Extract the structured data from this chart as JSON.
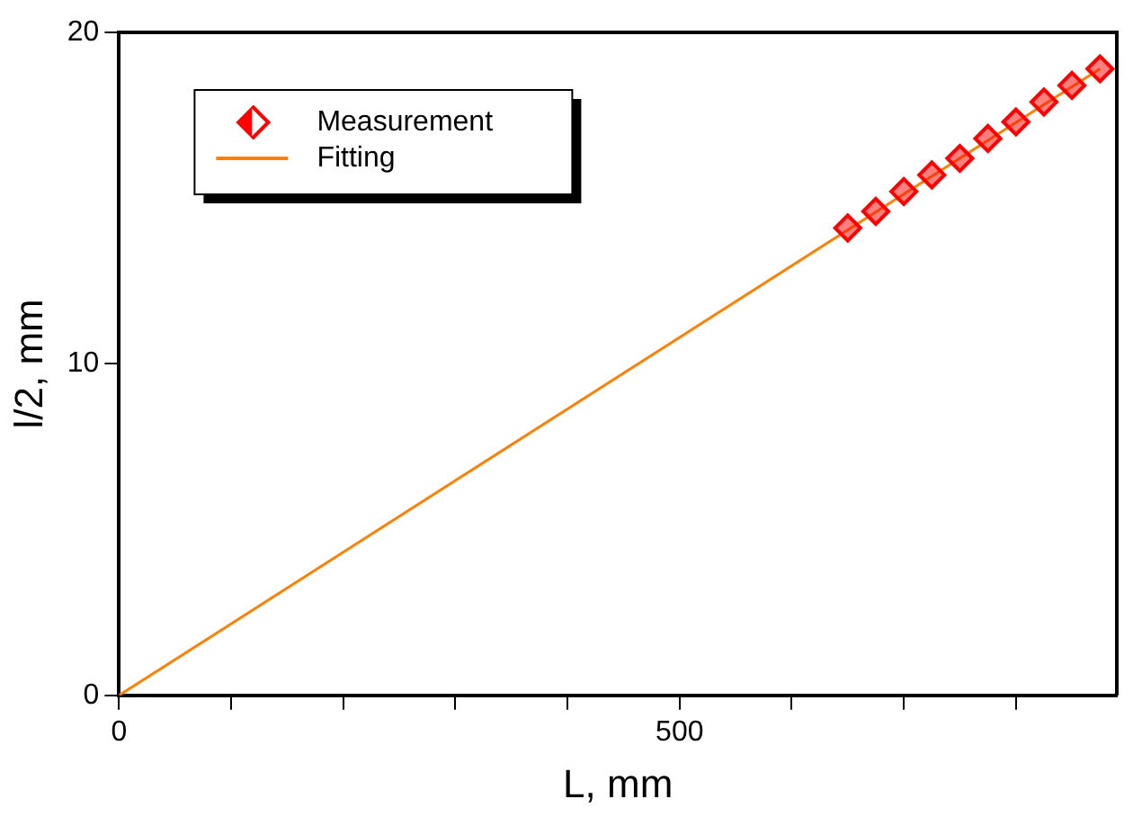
{
  "chart_data": {
    "type": "scatter",
    "xlabel": "L, mm",
    "ylabel": "l/2, mm",
    "xlim": [
      0,
      890
    ],
    "ylim": [
      0,
      20
    ],
    "xticks": [
      0,
      {
        "value": 100,
        "label": null
      },
      {
        "value": 200,
        "label": null
      },
      {
        "value": 300,
        "label": null
      },
      {
        "value": 400,
        "label": null
      },
      500,
      {
        "value": 600,
        "label": null
      },
      {
        "value": 700,
        "label": null
      },
      {
        "value": 800,
        "label": null
      }
    ],
    "yticks": [
      0,
      10,
      20
    ],
    "grid": false,
    "legend": "top left",
    "series": [
      {
        "name": "Fitting",
        "type": "line",
        "color": "#ff8000",
        "x": [
          0,
          875
        ],
        "values": [
          0,
          18.9
        ],
        "marker": "none",
        "line_style": "solid"
      },
      {
        "name": "Measurement",
        "color": "#ff0000",
        "marker": "diamond",
        "x": [
          650,
          675,
          700,
          725,
          750,
          775,
          800,
          825,
          850,
          875
        ],
        "values": [
          14.1,
          14.6,
          15.2,
          15.7,
          16.2,
          16.8,
          17.3,
          17.9,
          18.4,
          18.9
        ]
      }
    ]
  }
}
